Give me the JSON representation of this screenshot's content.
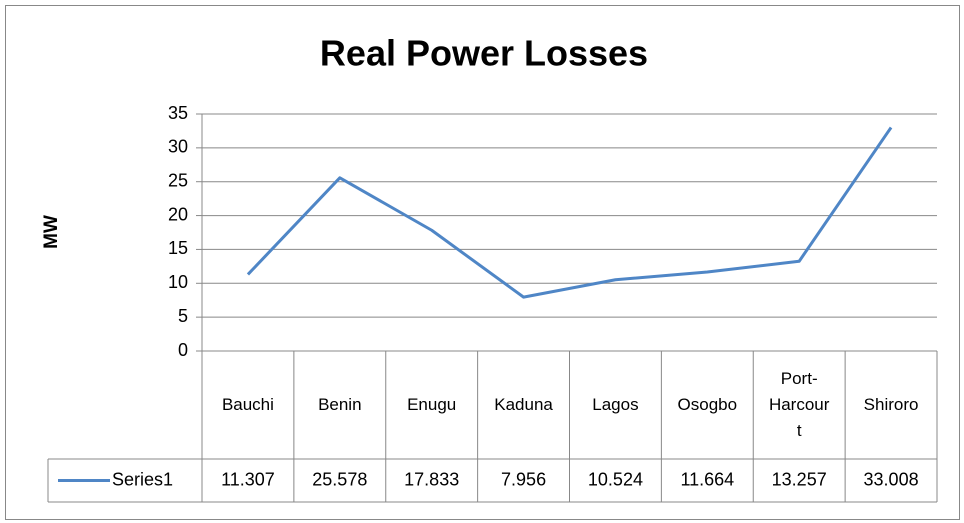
{
  "chart_data": {
    "type": "line",
    "title": "Real Power Losses",
    "y_label": "MW",
    "categories": [
      "Bauchi",
      "Benin",
      "Enugu",
      "Kaduna",
      "Lagos",
      "Osogbo",
      "Port-Harcourt",
      "Shiroro"
    ],
    "series": [
      {
        "name": "Series1",
        "color": "#4f86c6",
        "values": [
          11.307,
          25.578,
          17.833,
          7.956,
          10.524,
          11.664,
          13.257,
          33.008
        ]
      }
    ],
    "ylim": [
      0,
      35
    ],
    "yticks": [
      0,
      5,
      10,
      15,
      20,
      25,
      30,
      35
    ],
    "grid": true,
    "data_table": true
  }
}
